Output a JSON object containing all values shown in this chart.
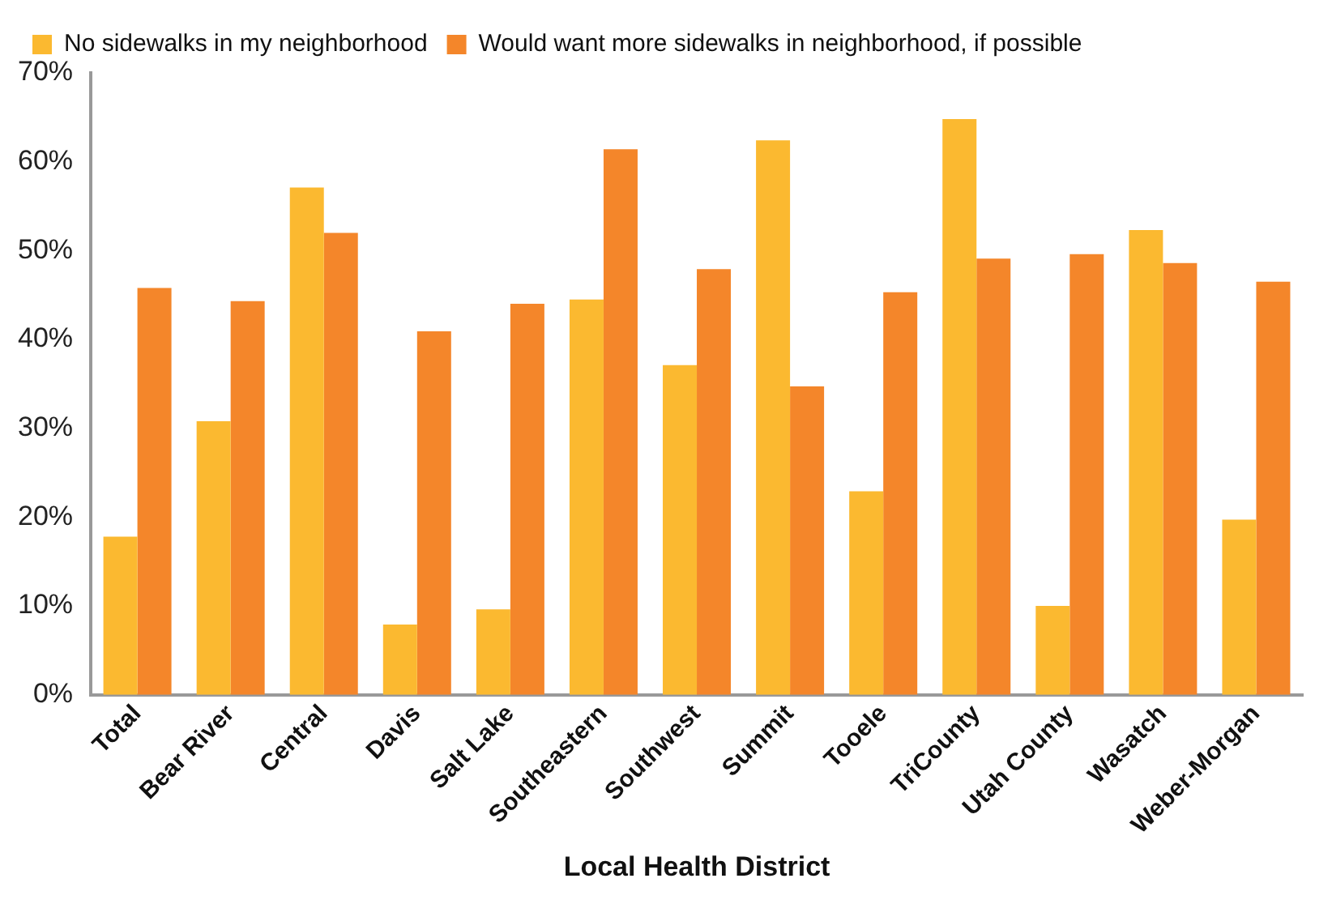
{
  "chart_data": {
    "type": "bar",
    "xlabel": "Local Health District",
    "categories": [
      "Total",
      "Bear River",
      "Central",
      "Davis",
      "Salt Lake",
      "Southeastern",
      "Southwest",
      "Summit",
      "Tooele",
      "TriCounty",
      "Utah County",
      "Wasatch",
      "Weber-Morgan"
    ],
    "series": [
      {
        "name": "No sidewalks in my neighborhood",
        "color": "#fbb930",
        "values": [
          17.8,
          30.8,
          57.1,
          7.9,
          9.6,
          44.5,
          37.1,
          62.4,
          22.9,
          64.8,
          10.0,
          52.3,
          19.7
        ]
      },
      {
        "name": "Would want more sidewalks in neighborhood, if possible",
        "color": "#f4862a",
        "values": [
          45.8,
          44.3,
          52.0,
          40.9,
          44.0,
          61.4,
          47.9,
          34.7,
          45.3,
          49.1,
          49.6,
          48.6,
          46.5
        ]
      }
    ],
    "ylim": [
      0,
      70
    ],
    "yticks": [
      {
        "value": 0,
        "label": "0%"
      },
      {
        "value": 10,
        "label": "10%"
      },
      {
        "value": 20,
        "label": "20%"
      },
      {
        "value": 30,
        "label": "30%"
      },
      {
        "value": 40,
        "label": "40%"
      },
      {
        "value": 50,
        "label": "50%"
      },
      {
        "value": 60,
        "label": "60%"
      },
      {
        "value": 70,
        "label": "70%"
      }
    ],
    "grid": false,
    "legend": "top left"
  }
}
